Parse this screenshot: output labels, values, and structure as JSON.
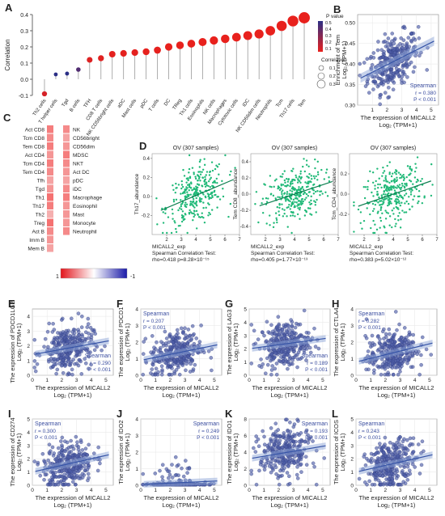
{
  "panel_letters": [
    "A",
    "B",
    "C",
    "D",
    "E",
    "F",
    "G",
    "H",
    "I",
    "J",
    "K",
    "L"
  ],
  "xlabel_common": "The expression of MICALL2",
  "xlabel_unit": "Log₂ (TPM+1)",
  "spearman_label": "Spearman",
  "chart_data": [
    {
      "panel": "A",
      "type": "lollipop",
      "ylabel": "Correlation",
      "ylim": [
        -0.1,
        0.4
      ],
      "yticks": [
        "-0.1",
        "0.0",
        "0.1",
        "0.2",
        "0.3",
        "0.4"
      ],
      "categories": [
        "Th2 cells",
        "T helper cells",
        "Tgd",
        "B cells",
        "TFH",
        "CD8 T cells",
        "NK CD56bright cells",
        "aDC",
        "Mast cells",
        "pDC",
        "T cells",
        "DC",
        "TReg",
        "Th1 cells",
        "Eosinophils",
        "NK cells",
        "Macrophages",
        "Cytotoxic cells",
        "iDC",
        "NK CD56dim cells",
        "Neutrophils",
        "Tcm",
        "Th17 cells",
        "Tem"
      ],
      "values": [
        -0.09,
        0.03,
        0.035,
        0.06,
        0.12,
        0.13,
        0.155,
        0.16,
        0.165,
        0.17,
        0.18,
        0.2,
        0.21,
        0.22,
        0.23,
        0.24,
        0.25,
        0.26,
        0.27,
        0.28,
        0.3,
        0.33,
        0.36,
        0.38
      ],
      "pvalues": [
        0.05,
        0.55,
        0.5,
        0.4,
        0.03,
        0.02,
        0.01,
        0.01,
        0.01,
        0.005,
        0.005,
        0.001,
        0.001,
        0.001,
        0.001,
        0.0005,
        0.0005,
        0.0003,
        0.0002,
        0.0001,
        0.0001,
        0.0001,
        0.0001,
        0.0001
      ],
      "legend_p_title": "P value",
      "legend_p_ticks": [
        "0.5",
        "0.4",
        "0.3",
        "0.2",
        "0.1"
      ],
      "legend_size_title": "Correlation",
      "legend_size_ticks": [
        "0.1",
        "0.2",
        "0.3"
      ],
      "colors": {
        "low_p": "#e8211d",
        "high_p": "#2b2f86"
      }
    },
    {
      "panel": "B",
      "type": "scatter",
      "ylabel": "Enrichment of Tem",
      "xlim": [
        0,
        5.5
      ],
      "ylim": [
        0.3,
        0.52
      ],
      "xticks": [
        "1",
        "2",
        "3",
        "4",
        "5"
      ],
      "yticks": [
        "0.30",
        "0.35",
        "0.40",
        "0.45",
        "0.50"
      ],
      "r": "r = 0.380",
      "p": "P < 0.001",
      "trend": {
        "slope": 0.018,
        "intercept": 0.362
      }
    },
    {
      "panel": "C",
      "type": "heatmap",
      "left_cells": [
        "Act CD8",
        "Tcm CD8",
        "Tem CD8",
        "Act CD4",
        "Tcm CD4",
        "Tem CD4",
        "Tfh",
        "Tgd",
        "Th1",
        "Th17",
        "Th2",
        "Treg",
        "Act B",
        "Imm B",
        "Mem B"
      ],
      "right_cells": [
        "NK",
        "CD56bright",
        "CD56dim",
        "MDSC",
        "NKT",
        "Act DC",
        "pDC",
        "iDC",
        "Macrophage",
        "Eosinophil",
        "Mast",
        "Monocyte",
        "Neutrophil"
      ],
      "left_values": [
        0.3,
        0.25,
        0.3,
        0.2,
        0.3,
        0.25,
        0.15,
        0.2,
        0.35,
        0.3,
        0.1,
        0.35,
        0.25,
        0.2,
        0.15
      ],
      "right_values": [
        0.25,
        0.15,
        0.2,
        0.3,
        0.25,
        0.2,
        0.15,
        0.25,
        0.3,
        0.2,
        0.2,
        0.2,
        0.25
      ],
      "colorbar_ticks": [
        "1",
        "-1"
      ]
    },
    {
      "panel": "D",
      "type": "scatter",
      "title": "OV (307 samples)",
      "xlabel": "MICALL2_exp",
      "ylabel": "Th17_abundance",
      "xlim": [
        1,
        7
      ],
      "ylim": [
        -0.4,
        0.45
      ],
      "xticks": [
        "2",
        "3",
        "4",
        "5",
        "6",
        "7"
      ],
      "yticks": [
        "-0.2",
        "0.0",
        "0.2",
        "0.4"
      ],
      "test": "Spearman Correlation Test:",
      "stat": "rho=0.418  p=8.28×10⁻¹⁵",
      "trend": {
        "slope": 0.065,
        "intercept": -0.25
      }
    },
    {
      "panel": "D",
      "type": "scatter",
      "title": "OV (307 samples)",
      "xlabel": "MICALL2_exp",
      "ylabel": "Tem CD8_abundance",
      "xlim": [
        1,
        7
      ],
      "ylim": [
        -0.5,
        0.5
      ],
      "xticks": [
        "2",
        "3",
        "4",
        "5",
        "6",
        "7"
      ],
      "yticks": [
        "-0.4",
        "-0.2",
        "0.0",
        "0.2",
        "0.4"
      ],
      "test": "Spearman Correlation Test:",
      "stat": "rho=0.405  p=1.77×10⁻¹³",
      "trend": {
        "slope": 0.06,
        "intercept": -0.24
      }
    },
    {
      "panel": "D",
      "type": "scatter",
      "title": "OV (307 samples)",
      "xlabel": "MICALL2_exp",
      "ylabel": "Tcm_CD4_abundance",
      "xlim": [
        1,
        7
      ],
      "ylim": [
        -0.4,
        0.4
      ],
      "xticks": [
        "2",
        "3",
        "4",
        "5",
        "6",
        "7"
      ],
      "yticks": [
        "-0.2",
        "0.0",
        "0.2"
      ],
      "test": "Spearman Correlation Test:",
      "stat": "rho=0.383  p=5.02×10⁻¹²",
      "trend": {
        "slope": 0.05,
        "intercept": -0.2
      }
    },
    {
      "panel": "E",
      "type": "scatter",
      "ylabel": "The expression of PDCD1LG2",
      "xlim": [
        0,
        5.5
      ],
      "ylim": [
        0,
        4.5
      ],
      "xticks": [
        "0",
        "1",
        "2",
        "3",
        "4",
        "5"
      ],
      "yticks": [
        "0",
        "1",
        "2",
        "3",
        "4"
      ],
      "r": "r = 0.290",
      "p": "P < 0.001",
      "trend": {
        "slope": 0.18,
        "intercept": 1.4
      }
    },
    {
      "panel": "F",
      "type": "scatter",
      "ylabel": "The expression of PDCD1",
      "xlim": [
        0,
        5.5
      ],
      "ylim": [
        0,
        4
      ],
      "xticks": [
        "0",
        "1",
        "2",
        "3",
        "4",
        "5"
      ],
      "yticks": [
        "0",
        "1",
        "2",
        "3",
        "4"
      ],
      "r": "r = 0.207",
      "p": "P < 0.001",
      "trend": {
        "slope": 0.18,
        "intercept": 0.9
      }
    },
    {
      "panel": "G",
      "type": "scatter",
      "ylabel": "The expression of LAG3",
      "xlim": [
        0,
        5.5
      ],
      "ylim": [
        0,
        5
      ],
      "xticks": [
        "0",
        "1",
        "2",
        "3",
        "4",
        "5"
      ],
      "yticks": [
        "0",
        "1",
        "2",
        "3",
        "4",
        "5"
      ],
      "r": "r = 0.189",
      "p": "P < 0.001",
      "trend": {
        "slope": 0.15,
        "intercept": 2.0
      }
    },
    {
      "panel": "H",
      "type": "scatter",
      "ylabel": "The expression of CTLA4",
      "xlim": [
        0,
        5.5
      ],
      "ylim": [
        0,
        4
      ],
      "xticks": [
        "0",
        "1",
        "2",
        "3",
        "4",
        "5"
      ],
      "yticks": [
        "0",
        "1",
        "2",
        "3",
        "4"
      ],
      "r": "r = 0.282",
      "p": "P < 0.001",
      "trend": {
        "slope": 0.22,
        "intercept": 0.8
      }
    },
    {
      "panel": "I",
      "type": "scatter",
      "ylabel": "The expression of CD274",
      "xlim": [
        0,
        5.5
      ],
      "ylim": [
        0,
        5
      ],
      "xticks": [
        "0",
        "1",
        "2",
        "3",
        "4",
        "5"
      ],
      "yticks": [
        "0",
        "1",
        "2",
        "3",
        "4",
        "5"
      ],
      "r": "r = 0.300",
      "p": "P < 0.001",
      "trend": {
        "slope": 0.25,
        "intercept": 1.0
      }
    },
    {
      "panel": "J",
      "type": "scatter",
      "ylabel": "The expression of IDO2",
      "xlim": [
        0,
        5.5
      ],
      "ylim": [
        0,
        4
      ],
      "xticks": [
        "0",
        "1",
        "2",
        "3",
        "4",
        "5"
      ],
      "yticks": [
        "0",
        "1",
        "2",
        "3",
        "4"
      ],
      "r": "r = 0.249",
      "p": "P < 0.001",
      "trend": {
        "slope": 0.04,
        "intercept": 0.05
      }
    },
    {
      "panel": "K",
      "type": "scatter",
      "ylabel": "The expression of IDO1",
      "xlim": [
        0,
        5.5
      ],
      "ylim": [
        0,
        8
      ],
      "xticks": [
        "0",
        "1",
        "2",
        "3",
        "4",
        "5"
      ],
      "yticks": [
        "0",
        "2",
        "4",
        "6",
        "8"
      ],
      "r": "r = 0.193",
      "p": "P < 0.001",
      "trend": {
        "slope": 0.3,
        "intercept": 3.2
      }
    },
    {
      "panel": "L",
      "type": "scatter",
      "ylabel": "The expression of ICOS",
      "xlim": [
        0,
        5.5
      ],
      "ylim": [
        0,
        5
      ],
      "xticks": [
        "0",
        "1",
        "2",
        "3",
        "4",
        "5"
      ],
      "yticks": [
        "0",
        "1",
        "2",
        "3",
        "4",
        "5"
      ],
      "r": "r = 0.243",
      "p": "P < 0.001",
      "trend": {
        "slope": 0.25,
        "intercept": 1.0
      }
    }
  ]
}
